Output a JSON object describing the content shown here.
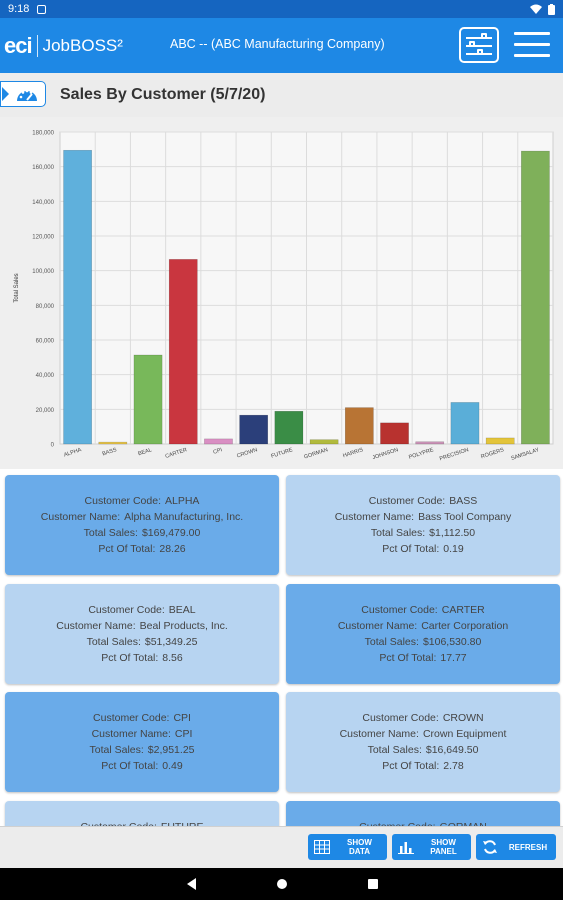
{
  "status_bar": {
    "time": "9:18"
  },
  "app": {
    "logo_eci": "eci",
    "logo_jobboss": "JobBOSS²",
    "company": "ABC -- (ABC Manufacturing Company)"
  },
  "page": {
    "title": "Sales By Customer (5/7/20)"
  },
  "chart_data": {
    "type": "bar",
    "ylabel": "Total Sales",
    "xlabel": "",
    "ylim": [
      0,
      180000
    ],
    "yticks": [
      "0",
      "20,000",
      "40,000",
      "60,000",
      "80,000",
      "100,000",
      "120,000",
      "140,000",
      "160,000",
      "180,000"
    ],
    "categories": [
      "ALPHA",
      "BASS",
      "BEAL",
      "CARTER",
      "CPI",
      "CROWN",
      "FUTURE",
      "GORMAN",
      "HARRIS",
      "JOHNSON",
      "POLYPRE",
      "PRECISION",
      "ROGERS",
      "SAMSALAY"
    ],
    "values": [
      169479,
      1112.5,
      51349.25,
      106530.8,
      2951.25,
      16649.5,
      18900,
      2500,
      21000,
      12200,
      1300,
      24000,
      3500,
      169000
    ],
    "colors": [
      "#5fb0dc",
      "#e8c547",
      "#78b85a",
      "#c9363f",
      "#d98fc3",
      "#2b3f7a",
      "#3a8d46",
      "#b1ba3c",
      "#b87434",
      "#b8322f",
      "#c992b6",
      "#5aaed8",
      "#e3c43a",
      "#7fb05a"
    ],
    "grid": true,
    "legend": "none"
  },
  "customers": [
    {
      "code": "ALPHA",
      "name": "Alpha Manufacturing, Inc.",
      "sales": "$169,479.00",
      "pct": "28.26"
    },
    {
      "code": "BASS",
      "name": "Bass Tool Company",
      "sales": "$1,112.50",
      "pct": "0.19"
    },
    {
      "code": "BEAL",
      "name": "Beal Products, Inc.",
      "sales": "$51,349.25",
      "pct": "8.56"
    },
    {
      "code": "CARTER",
      "name": "Carter Corporation",
      "sales": "$106,530.80",
      "pct": "17.77"
    },
    {
      "code": "CPI",
      "name": "CPI",
      "sales": "$2,951.25",
      "pct": "0.49"
    },
    {
      "code": "CROWN",
      "name": "Crown Equipment",
      "sales": "$16,649.50",
      "pct": "2.78"
    },
    {
      "code": "FUTURE",
      "name": "",
      "sales": "",
      "pct": ""
    },
    {
      "code": "GORMAN",
      "name": "",
      "sales": "",
      "pct": ""
    }
  ],
  "card_labels": {
    "code": "Customer Code:",
    "name": "Customer Name:",
    "sales": "Total Sales:",
    "pct": "Pct Of Total:"
  },
  "footer": {
    "show_data": [
      "SHOW",
      "DATA"
    ],
    "show_panel": [
      "SHOW",
      "PANEL"
    ],
    "refresh": "REFRESH"
  }
}
